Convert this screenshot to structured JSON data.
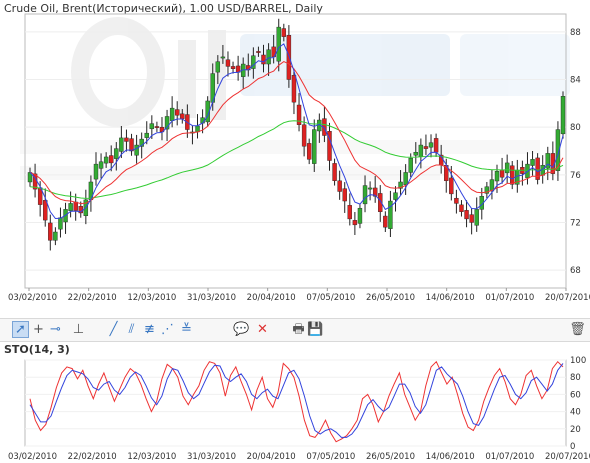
{
  "header": {
    "title": "Crude Oil, Brent(Исторический), 1.00 USD/BARREL, Daily"
  },
  "indicator": {
    "title": "STO(14, 3)"
  },
  "colors": {
    "up": "#33aa33",
    "down": "#dd2222",
    "fast": "#3344dd",
    "slow": "#ee3333",
    "long": "#33cc33"
  },
  "toolbar": {
    "items": [
      {
        "name": "pointer-tool-icon",
        "glyph": "➚",
        "active": true,
        "cls": "blue2"
      },
      {
        "name": "crosshair-tool-icon",
        "glyph": "+",
        "cls": "gray"
      },
      {
        "name": "horizontal-line-tool-icon",
        "glyph": "⊸",
        "cls": "blue2"
      },
      {
        "name": "vertical-line-tool-icon",
        "glyph": "⊥",
        "cls": "gray"
      },
      {
        "name": "trend-line-tool-icon",
        "glyph": "╱",
        "cls": "blue2"
      },
      {
        "name": "parallel-channel-tool-icon",
        "glyph": "⫽",
        "cls": "blue2"
      },
      {
        "name": "fibonacci-tool-icon",
        "glyph": "≢",
        "cls": "blue2"
      },
      {
        "name": "fan-lines-tool-icon",
        "glyph": "⋰",
        "cls": "blue2"
      },
      {
        "name": "arc-tool-icon",
        "glyph": "≚",
        "cls": "blue2"
      },
      {
        "name": "comment-tool-icon",
        "glyph": "💬",
        "cls": "blue2"
      },
      {
        "name": "delete-drawing-icon",
        "glyph": "✕",
        "cls": "red"
      },
      {
        "name": "print-icon",
        "glyph": "🖶",
        "cls": "gray"
      },
      {
        "name": "save-icon",
        "glyph": "💾",
        "cls": "blue2"
      },
      {
        "name": "trash-icon",
        "glyph": "🗑",
        "cls": "gray"
      }
    ]
  },
  "chart_data": [
    {
      "type": "candlestick",
      "title": "Crude Oil, Brent(Исторический), 1.00 USD/BARREL, Daily",
      "x_ticks": [
        "03/02/2010",
        "22/02/2010",
        "12/03/2010",
        "31/03/2010",
        "20/04/2010",
        "07/05/2010",
        "26/05/2010",
        "14/06/2010",
        "01/07/2010",
        "20/07/2010"
      ],
      "y_ticks": [
        "68",
        "72",
        "76",
        "80",
        "84",
        "88"
      ],
      "ylim": [
        66.5,
        89.5
      ],
      "close": [
        76.2,
        74.8,
        73.5,
        72.2,
        70.5,
        71.2,
        72.4,
        73.1,
        73.6,
        73.0,
        72.8,
        73.9,
        75.4,
        76.9,
        77.1,
        77.5,
        77.0,
        78.2,
        79.1,
        78.8,
        78.0,
        78.5,
        79.0,
        79.5,
        80.3,
        80.0,
        79.6,
        80.9,
        81.6,
        81.0,
        80.7,
        79.8,
        79.6,
        80.1,
        80.8,
        82.2,
        84.5,
        85.5,
        85.9,
        85.1,
        84.9,
        84.6,
        85.3,
        84.8,
        86.0,
        86.3,
        85.3,
        86.5,
        85.9,
        88.4,
        87.6,
        84.0,
        82.1,
        80.2,
        78.4,
        77.3,
        79.8,
        80.6,
        79.3,
        77.2,
        75.5,
        74.6,
        73.8,
        72.3,
        71.8,
        73.2,
        75.1,
        74.9,
        74.2,
        72.9,
        71.6,
        73.8,
        74.5,
        75.4,
        76.2,
        77.4,
        77.9,
        78.5,
        78.2,
        78.7,
        77.9,
        76.8,
        75.5,
        74.4,
        73.6,
        72.9,
        72.3,
        72.0,
        73.1,
        74.2,
        75.0,
        75.6,
        76.3,
        75.8,
        77.0,
        75.2,
        76.4,
        76.1,
        76.9,
        77.3,
        75.6,
        76.8,
        77.8,
        76.1,
        79.8,
        82.6
      ],
      "ma_fast_color": "blue",
      "ma_slow_color": "red",
      "ma_long_color": "green"
    },
    {
      "type": "line",
      "title": "STO(14, 3)",
      "x_ticks": [
        "03/02/2010",
        "22/02/2010",
        "12/03/2010",
        "31/03/2010",
        "20/04/2010",
        "07/05/2010",
        "26/05/2010",
        "14/06/2010",
        "01/07/2010",
        "20/07/2010"
      ],
      "y_ticks": [
        "0",
        "20",
        "40",
        "60",
        "80",
        "100"
      ],
      "ylim": [
        0,
        100
      ],
      "series": [
        {
          "color": "red",
          "values": [
            55,
            30,
            18,
            25,
            45,
            68,
            85,
            92,
            90,
            78,
            88,
            70,
            55,
            72,
            85,
            68,
            52,
            66,
            80,
            90,
            85,
            72,
            55,
            40,
            52,
            78,
            95,
            90,
            80,
            58,
            48,
            60,
            70,
            88,
            98,
            96,
            85,
            58,
            82,
            92,
            75,
            60,
            42,
            65,
            80,
            55,
            45,
            62,
            96,
            90,
            80,
            58,
            30,
            12,
            10,
            18,
            30,
            15,
            5,
            8,
            12,
            20,
            30,
            55,
            60,
            48,
            28,
            40,
            58,
            72,
            85,
            60,
            45,
            30,
            40,
            70,
            92,
            98,
            85,
            72,
            80,
            60,
            38,
            22,
            18,
            30,
            52,
            68,
            82,
            90,
            75,
            55,
            48,
            60,
            82,
            88,
            70,
            55,
            65,
            90,
            98,
            92
          ]
        },
        {
          "color": "blue",
          "values": [
            48,
            38,
            28,
            28,
            35,
            52,
            68,
            82,
            88,
            86,
            84,
            78,
            68,
            65,
            72,
            75,
            65,
            60,
            68,
            80,
            86,
            82,
            70,
            56,
            48,
            58,
            78,
            90,
            88,
            76,
            62,
            55,
            60,
            73,
            86,
            94,
            93,
            80,
            75,
            80,
            84,
            75,
            60,
            55,
            62,
            66,
            58,
            55,
            70,
            85,
            88,
            78,
            58,
            35,
            18,
            14,
            18,
            20,
            16,
            10,
            10,
            14,
            22,
            35,
            48,
            54,
            46,
            40,
            45,
            58,
            72,
            72,
            62,
            46,
            38,
            48,
            68,
            88,
            92,
            84,
            78,
            72,
            58,
            40,
            26,
            24,
            34,
            50,
            66,
            80,
            82,
            72,
            60,
            55,
            62,
            76,
            80,
            72,
            64,
            72,
            88,
            96
          ]
        }
      ]
    }
  ]
}
